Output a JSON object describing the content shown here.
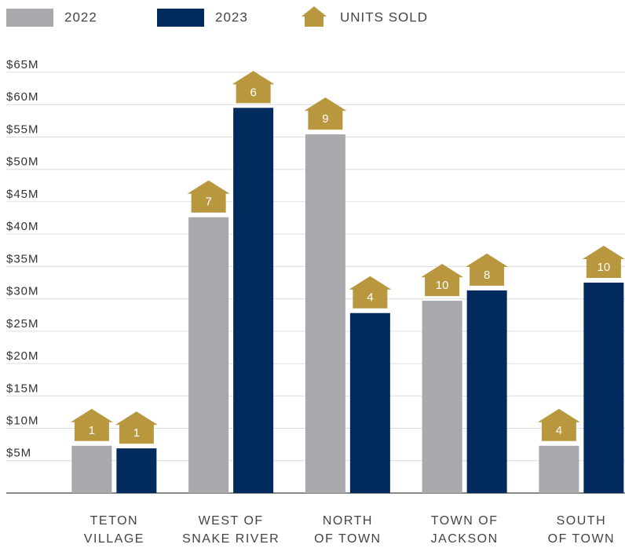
{
  "chart_data": {
    "type": "bar",
    "categories": [
      [
        "TETON",
        "VILLAGE"
      ],
      [
        "WEST OF",
        "SNAKE RIVER"
      ],
      [
        "NORTH",
        "OF TOWN"
      ],
      [
        "TOWN OF",
        "JACKSON"
      ],
      [
        "SOUTH",
        "OF TOWN"
      ]
    ],
    "series": [
      {
        "name": "2022",
        "color": "#a7a9ac",
        "values": [
          7.3,
          42.6,
          55.4,
          29.7,
          7.3
        ],
        "units": [
          1,
          7,
          9,
          10,
          4
        ]
      },
      {
        "name": "2023",
        "color": "#002b5c",
        "values": [
          6.9,
          59.5,
          27.8,
          31.3,
          32.5
        ],
        "units": [
          1,
          6,
          4,
          8,
          10
        ]
      }
    ],
    "units_name": "UNITS SOLD",
    "units_color": "#b8973e",
    "ylim": [
      0,
      65
    ],
    "yticks": [
      {
        "value": 5,
        "label": "$5M"
      },
      {
        "value": 10,
        "label": "$10M"
      },
      {
        "value": 15,
        "label": "$15M"
      },
      {
        "value": 20,
        "label": "$20M"
      },
      {
        "value": 25,
        "label": "$25M"
      },
      {
        "value": 30,
        "label": "$30M"
      },
      {
        "value": 35,
        "label": "$35M"
      },
      {
        "value": 40,
        "label": "$40M"
      },
      {
        "value": 45,
        "label": "$45M"
      },
      {
        "value": 50,
        "label": "$50M"
      },
      {
        "value": 55,
        "label": "$55M"
      },
      {
        "value": 60,
        "label": "$60M"
      },
      {
        "value": 65,
        "label": "$65M"
      }
    ],
    "grid": true
  }
}
